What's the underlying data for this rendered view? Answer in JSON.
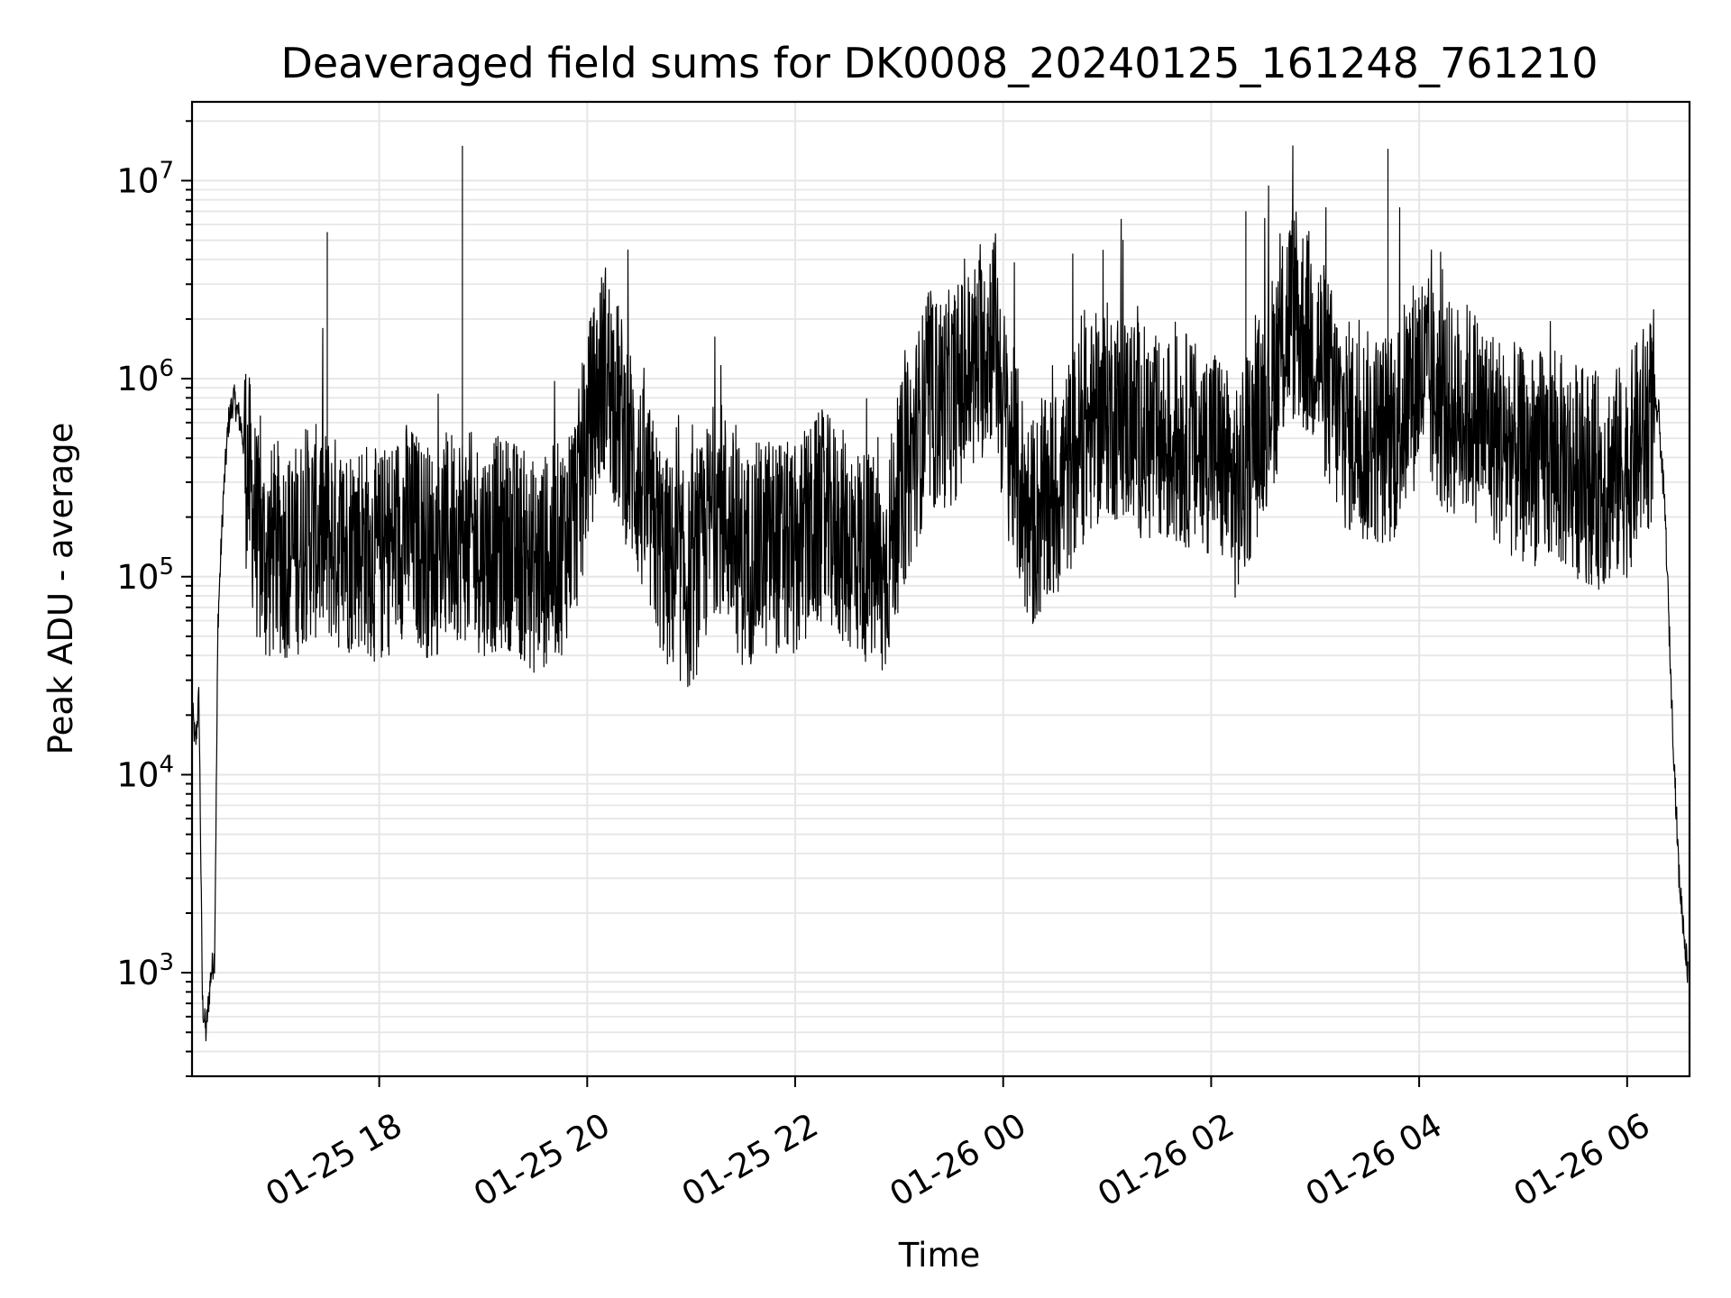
{
  "chart_data": {
    "type": "line",
    "title": "Deaveraged field sums for DK0008_20240125_161248_761210",
    "xlabel": "Time",
    "ylabel": "Peak ADU - average",
    "yscale": "log",
    "grid": true,
    "grid_minor": true,
    "xlim": [
      "2024-01-25 16:12",
      "2024-01-26 06:36"
    ],
    "ylim": [
      300,
      25000000
    ],
    "x_ticks": [
      {
        "value": "2024-01-25 18:00",
        "label": "01-25 18"
      },
      {
        "value": "2024-01-25 20:00",
        "label": "01-25 20"
      },
      {
        "value": "2024-01-25 22:00",
        "label": "01-25 22"
      },
      {
        "value": "2024-01-26 00:00",
        "label": "01-26 00"
      },
      {
        "value": "2024-01-26 02:00",
        "label": "01-26 02"
      },
      {
        "value": "2024-01-26 04:00",
        "label": "01-26 04"
      },
      {
        "value": "2024-01-26 06:00",
        "label": "01-26 06"
      }
    ],
    "y_ticks": [
      {
        "value": 1000,
        "base": "10",
        "exp": "3"
      },
      {
        "value": 10000,
        "base": "10",
        "exp": "4"
      },
      {
        "value": 100000,
        "base": "10",
        "exp": "5"
      },
      {
        "value": 1000000,
        "base": "10",
        "exp": "6"
      },
      {
        "value": 10000000,
        "base": "10",
        "exp": "7"
      }
    ],
    "line_color": "#000000",
    "grid_color": "#e6e6e6",
    "series": [
      {
        "x": [
          "2024-01-25 16:12",
          "2024-01-25 16:14",
          "2024-01-25 16:16",
          "2024-01-25 16:18",
          "2024-01-25 16:20",
          "2024-01-25 16:23",
          "2024-01-25 16:25",
          "2024-01-25 16:27",
          "2024-01-25 16:30",
          "2024-01-25 16:33",
          "2024-01-25 16:36",
          "2024-01-25 16:40",
          "2024-01-25 16:45",
          "2024-01-25 16:50",
          "2024-01-25 16:55",
          "2024-01-25 17:00",
          "2024-01-25 17:10",
          "2024-01-25 17:20",
          "2024-01-25 17:30",
          "2024-01-25 17:40",
          "2024-01-25 17:50",
          "2024-01-25 18:00",
          "2024-01-25 18:15",
          "2024-01-25 18:30",
          "2024-01-25 18:45",
          "2024-01-25 19:00",
          "2024-01-25 19:15",
          "2024-01-25 19:30",
          "2024-01-25 19:45",
          "2024-01-25 19:55",
          "2024-01-25 20:00",
          "2024-01-25 20:10",
          "2024-01-25 20:30",
          "2024-01-25 20:45",
          "2024-01-25 21:00",
          "2024-01-25 21:15",
          "2024-01-25 21:30",
          "2024-01-25 21:45",
          "2024-01-25 22:00",
          "2024-01-25 22:15",
          "2024-01-25 22:30",
          "2024-01-25 22:45",
          "2024-01-25 22:50",
          "2024-01-25 23:00",
          "2024-01-25 23:15",
          "2024-01-25 23:30",
          "2024-01-25 23:45",
          "2024-01-25 23:55",
          "2024-01-26 00:00",
          "2024-01-26 00:15",
          "2024-01-26 00:30",
          "2024-01-26 00:45",
          "2024-01-26 01:00",
          "2024-01-26 01:15",
          "2024-01-26 01:30",
          "2024-01-26 01:45",
          "2024-01-26 01:55",
          "2024-01-26 02:00",
          "2024-01-26 02:15",
          "2024-01-26 02:30",
          "2024-01-26 02:40",
          "2024-01-26 02:45",
          "2024-01-26 03:00",
          "2024-01-26 03:15",
          "2024-01-26 03:30",
          "2024-01-26 03:45",
          "2024-01-26 04:00",
          "2024-01-26 04:15",
          "2024-01-26 04:30",
          "2024-01-26 04:45",
          "2024-01-26 05:00",
          "2024-01-26 05:15",
          "2024-01-26 05:30",
          "2024-01-26 05:45",
          "2024-01-26 06:00",
          "2024-01-26 06:10",
          "2024-01-26 06:18",
          "2024-01-26 06:22",
          "2024-01-26 06:26",
          "2024-01-26 06:30",
          "2024-01-26 06:35"
        ],
        "y": [
          22000,
          14000,
          25000,
          700,
          500,
          1000,
          1200,
          60000,
          250000,
          600000,
          800000,
          600000,
          300000,
          150000,
          120000,
          140000,
          130000,
          170000,
          160000,
          140000,
          150000,
          120000,
          180000,
          130000,
          170000,
          140000,
          150000,
          110000,
          140000,
          250000,
          500000,
          1200000,
          300000,
          120000,
          90000,
          250000,
          120000,
          150000,
          130000,
          200000,
          150000,
          120000,
          90000,
          250000,
          700000,
          800000,
          1200000,
          1800000,
          700000,
          180000,
          250000,
          500000,
          700000,
          600000,
          450000,
          500000,
          400000,
          500000,
          250000,
          700000,
          1300000,
          2200000,
          1500000,
          600000,
          500000,
          500000,
          1100000,
          700000,
          700000,
          500000,
          400000,
          400000,
          350000,
          300000,
          350000,
          550000,
          700000,
          200000,
          20000,
          3000,
          1000
        ]
      }
    ],
    "annotated_peaks": [
      {
        "x": "2024-01-25 17:30",
        "y": 5500000
      },
      {
        "x": "2024-01-25 18:48",
        "y": 15000000
      },
      {
        "x": "2024-01-26 02:20",
        "y": 7000000
      },
      {
        "x": "2024-01-26 03:42",
        "y": 14500000
      }
    ]
  }
}
